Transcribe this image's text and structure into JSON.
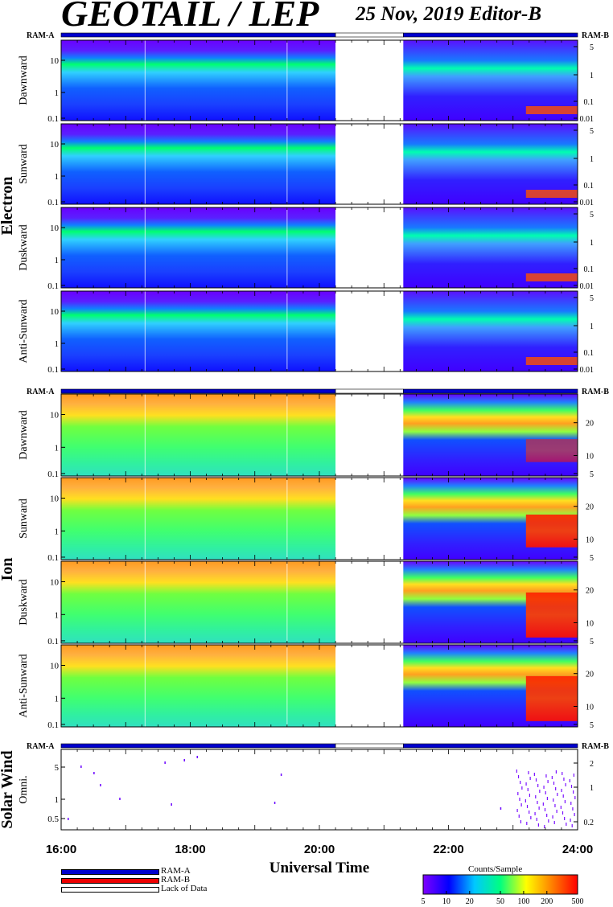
{
  "header": {
    "title": "GEOTAIL / LEP",
    "dateline": "25 Nov, 2019   Editor-B"
  },
  "chart_data": {
    "type": "heatmap",
    "x_axis": {
      "title": "Universal Time",
      "tick_labels": [
        "16:00",
        "18:00",
        "20:00",
        "22:00",
        "24:00"
      ],
      "range_hours": [
        16,
        24
      ]
    },
    "mode_labels": {
      "left": "RAM-A",
      "right": "RAM-B"
    },
    "mode_bar_segments": [
      {
        "start": 16.0,
        "end": 20.25,
        "mode": "RAM-A"
      },
      {
        "start": 20.25,
        "end": 21.3,
        "mode": "Lack of Data"
      },
      {
        "start": 21.3,
        "end": 24.0,
        "mode": "RAM-A"
      }
    ],
    "data_gap": [
      20.25,
      21.3
    ],
    "groups": [
      {
        "name": "Electron",
        "panels": [
          {
            "label": "Dawnward",
            "left_ticks": [
              "10",
              "1",
              "0.1"
            ],
            "right_ticks": [
              "5",
              "1",
              "0.1",
              "0.01"
            ]
          },
          {
            "label": "Sunward",
            "left_ticks": [
              "10",
              "1",
              "0.1"
            ],
            "right_ticks": [
              "5",
              "1",
              "0.1",
              "0.01"
            ]
          },
          {
            "label": "Duskward",
            "left_ticks": [
              "10",
              "1",
              "0.1"
            ],
            "right_ticks": [
              "5",
              "1",
              "0.1",
              "0.01"
            ]
          },
          {
            "label": "Anti-Sunward",
            "left_ticks": [
              "10",
              "1",
              "0.1"
            ],
            "right_ticks": [
              "5",
              "1",
              "0.1",
              "0.01"
            ]
          }
        ]
      },
      {
        "name": "Ion",
        "panels": [
          {
            "label": "Dawnward",
            "left_ticks": [
              "10",
              "1",
              "0.1"
            ],
            "right_ticks": [
              "20",
              "10",
              "5"
            ]
          },
          {
            "label": "Sunward",
            "left_ticks": [
              "10",
              "1",
              "0.1"
            ],
            "right_ticks": [
              "20",
              "10",
              "5"
            ]
          },
          {
            "label": "Duskward",
            "left_ticks": [
              "10",
              "1",
              "0.1"
            ],
            "right_ticks": [
              "20",
              "10",
              "5"
            ]
          },
          {
            "label": "Anti-Sunward",
            "left_ticks": [
              "10",
              "1",
              "0.1"
            ],
            "right_ticks": [
              "20",
              "10",
              "5"
            ]
          }
        ]
      },
      {
        "name": "Solar Wind",
        "panels": [
          {
            "label": "Omni.",
            "left_ticks": [
              "5",
              "1",
              "0.5"
            ],
            "right_ticks": [
              "2",
              "1",
              "0.2"
            ]
          }
        ]
      }
    ],
    "colorbar": {
      "title": "Counts/Sample",
      "scale": "log",
      "range": [
        5,
        500
      ],
      "tick_labels": [
        "5",
        "10",
        "20",
        "50",
        "100",
        "200",
        "500"
      ],
      "colors": [
        "#7f00ff",
        "#0000ff",
        "#00c8ff",
        "#00ff80",
        "#ffff00",
        "#ff8000",
        "#ff0000"
      ]
    },
    "legend": [
      {
        "label": "RAM-A",
        "color": "#0000cc"
      },
      {
        "label": "RAM-B",
        "color": "#ee0000"
      },
      {
        "label": "Lack of Data",
        "color": "#ffffff"
      }
    ]
  }
}
